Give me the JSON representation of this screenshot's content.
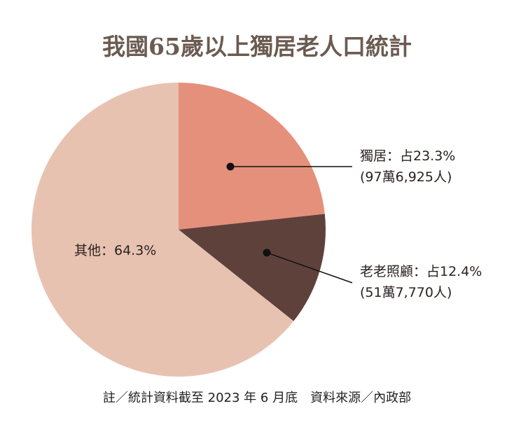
{
  "chart_data": {
    "type": "pie",
    "title": "我國65歲以上獨居老人口統計",
    "slices": [
      {
        "label": "獨居",
        "value": 23.3,
        "text": "獨居：占23.3%",
        "sub": "(97萬6,925人)",
        "color": "#e5907b"
      },
      {
        "label": "老老照顧",
        "value": 12.4,
        "text": "老老照顧：占12.4%",
        "sub": "(51萬7,770人)",
        "color": "#5f413c"
      },
      {
        "label": "其他",
        "value": 64.3,
        "text": "其他：64.3%",
        "color": "#e8c2b1"
      }
    ],
    "note": "註／統計資料截至 2023 年 6 月底　資料來源／內政部"
  }
}
